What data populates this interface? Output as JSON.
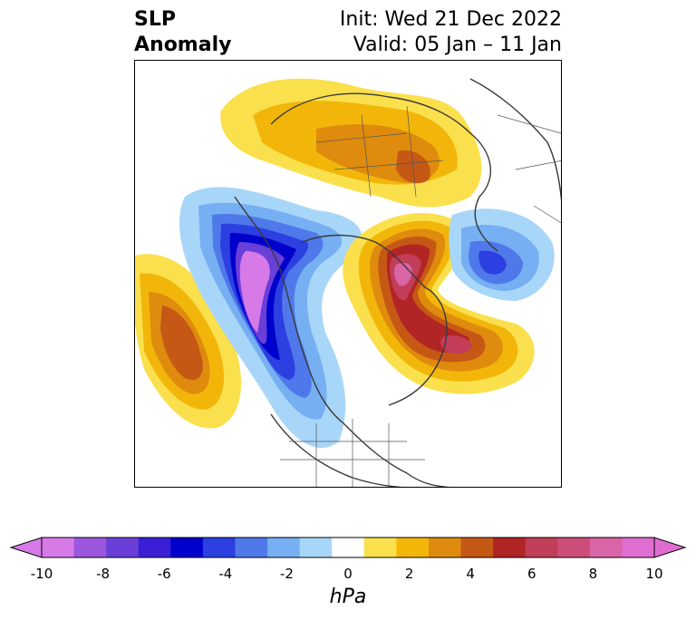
{
  "header": {
    "title_line1": "SLP",
    "title_line2": "Anomaly",
    "init": "Init: Wed 21 Dec 2022",
    "valid": "Valid: 05 Jan – 11 Jan"
  },
  "colorbar": {
    "units": "hPa",
    "tick_labels": [
      "-10",
      "-8",
      "-6",
      "-4",
      "-2",
      "0",
      "2",
      "4",
      "6",
      "8",
      "10"
    ],
    "colors": [
      "#d77ae8",
      "#9c57de",
      "#6a3fd8",
      "#3b1fd6",
      "#0000cd",
      "#2c3fe0",
      "#4f79ea",
      "#76aff2",
      "#a8d6f8",
      "#ffffff",
      "#fbe04d",
      "#f2b60a",
      "#de8b0e",
      "#c65816",
      "#b22525",
      "#c23d58",
      "#cd4d7a",
      "#d964a6",
      "#e06ed0"
    ],
    "extend": "both",
    "range": [
      -10,
      10
    ]
  },
  "map": {
    "projection": "north-polar-stereographic",
    "region": "Northern Hemisphere (North America, Arctic, Eurasia)",
    "features": [
      {
        "name": "north-pacific-positive-anomaly",
        "sign": "positive",
        "peak_hpa": 5
      },
      {
        "name": "western-north-america-negative-anomaly",
        "sign": "negative",
        "peak_hpa": -10
      },
      {
        "name": "north-atlantic-greenland-positive-anomaly",
        "sign": "positive",
        "peak_hpa": 8
      },
      {
        "name": "eurasia-positive-anomaly",
        "sign": "positive",
        "peak_hpa": 6
      },
      {
        "name": "europe-negative-anomaly",
        "sign": "negative",
        "peak_hpa": -4
      }
    ]
  }
}
